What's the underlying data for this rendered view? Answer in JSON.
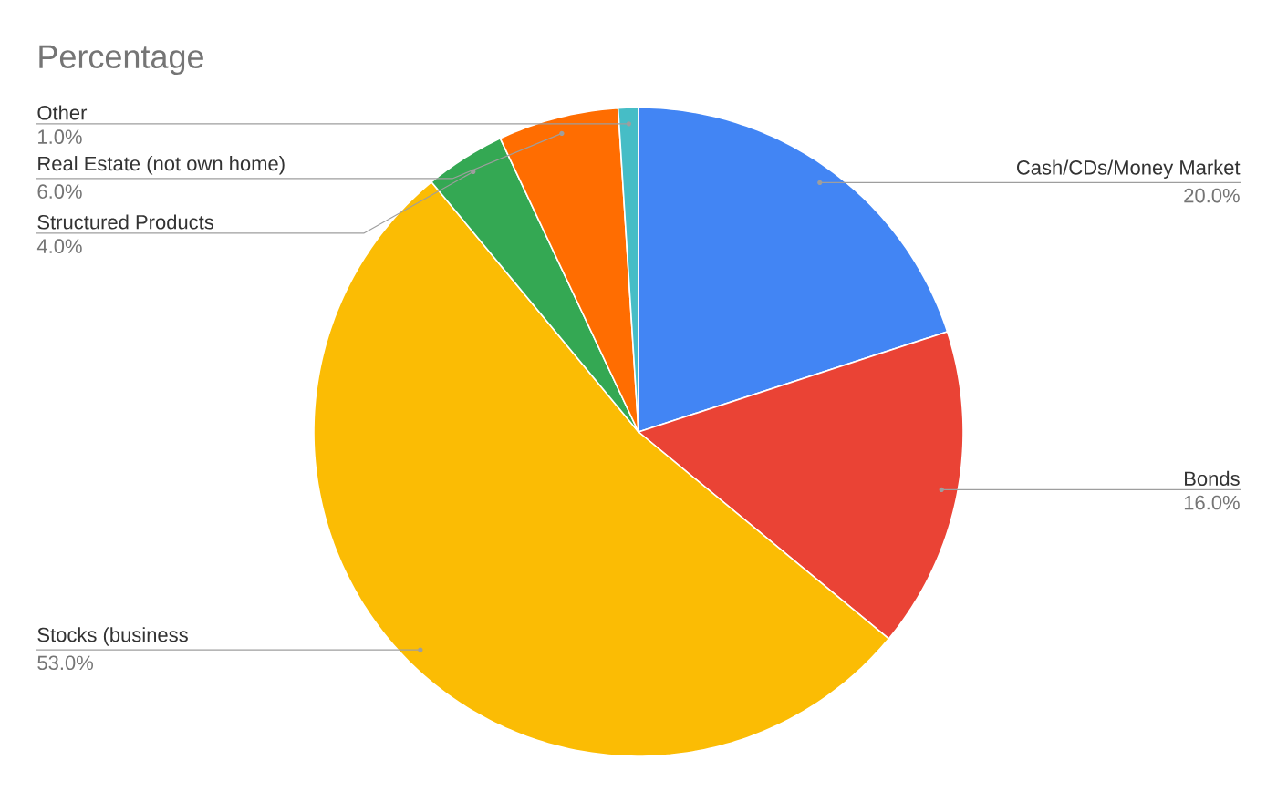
{
  "chart_data": {
    "type": "pie",
    "title": "Percentage",
    "categories": [
      "Cash/CDs/Money Market",
      "Bonds",
      "Stocks (business",
      "Structured Products",
      "Real Estate (not own home)",
      "Other"
    ],
    "values": [
      20,
      16,
      53,
      4,
      6,
      1
    ],
    "value_labels": [
      "20.0%",
      "16.0%",
      "53.0%",
      "4.0%",
      "6.0%",
      "1.0%"
    ],
    "colors": [
      "#4285f4",
      "#ea4335",
      "#fbbc04",
      "#34a853",
      "#ff6d01",
      "#46bdc6"
    ]
  }
}
